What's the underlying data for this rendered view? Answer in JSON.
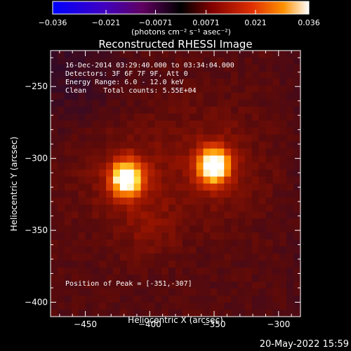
{
  "chart_data": {
    "type": "heatmap",
    "title": "Reconstructed RHESSI Image",
    "xlabel": "Heliocentric X (arcsec)",
    "ylabel": "Heliocentric Y (arcsec)",
    "xlim": [
      -477,
      -283
    ],
    "ylim": [
      -410,
      -225
    ],
    "x_ticks": [
      -450,
      -400,
      -350,
      -300
    ],
    "x_tick_labels": [
      "−450",
      "−400",
      "−350",
      "−300"
    ],
    "y_ticks": [
      -400,
      -350,
      -300,
      -250
    ],
    "y_tick_labels": [
      "−400",
      "−350",
      "−300",
      "−250"
    ],
    "colorbar": {
      "range": [
        -0.036,
        0.036
      ],
      "ticks": [
        -0.036,
        -0.021,
        -0.0071,
        0.0071,
        0.021,
        0.036
      ],
      "tick_labels": [
        "−0.036",
        "−0.021",
        "−0.0071",
        "0.0071",
        "0.021",
        "0.036"
      ],
      "unit_label": "(photons cm⁻² s⁻¹ asec⁻²)",
      "colormap": [
        "#0000ff",
        "#4000c0",
        "#600060",
        "#000000",
        "#800000",
        "#e03000",
        "#ff9000",
        "#ffffff"
      ]
    },
    "annotations": [
      "16-Dec-2014 03:29:40.000 to 03:34:04.000",
      "Detectors: 3F 6F 7F 9F, Att 0",
      "Energy Range: 6.0 - 12.0 keV",
      "Clean    Total counts: 5.55E+04",
      "Position of Peak = [-351,-307]"
    ],
    "sources": [
      {
        "x": -418,
        "y": -314,
        "peak": 0.036
      },
      {
        "x": -350,
        "y": -305,
        "peak": 0.036
      }
    ],
    "grid": false
  },
  "footer": {
    "timestamp": "20-May-2022 15:59"
  }
}
